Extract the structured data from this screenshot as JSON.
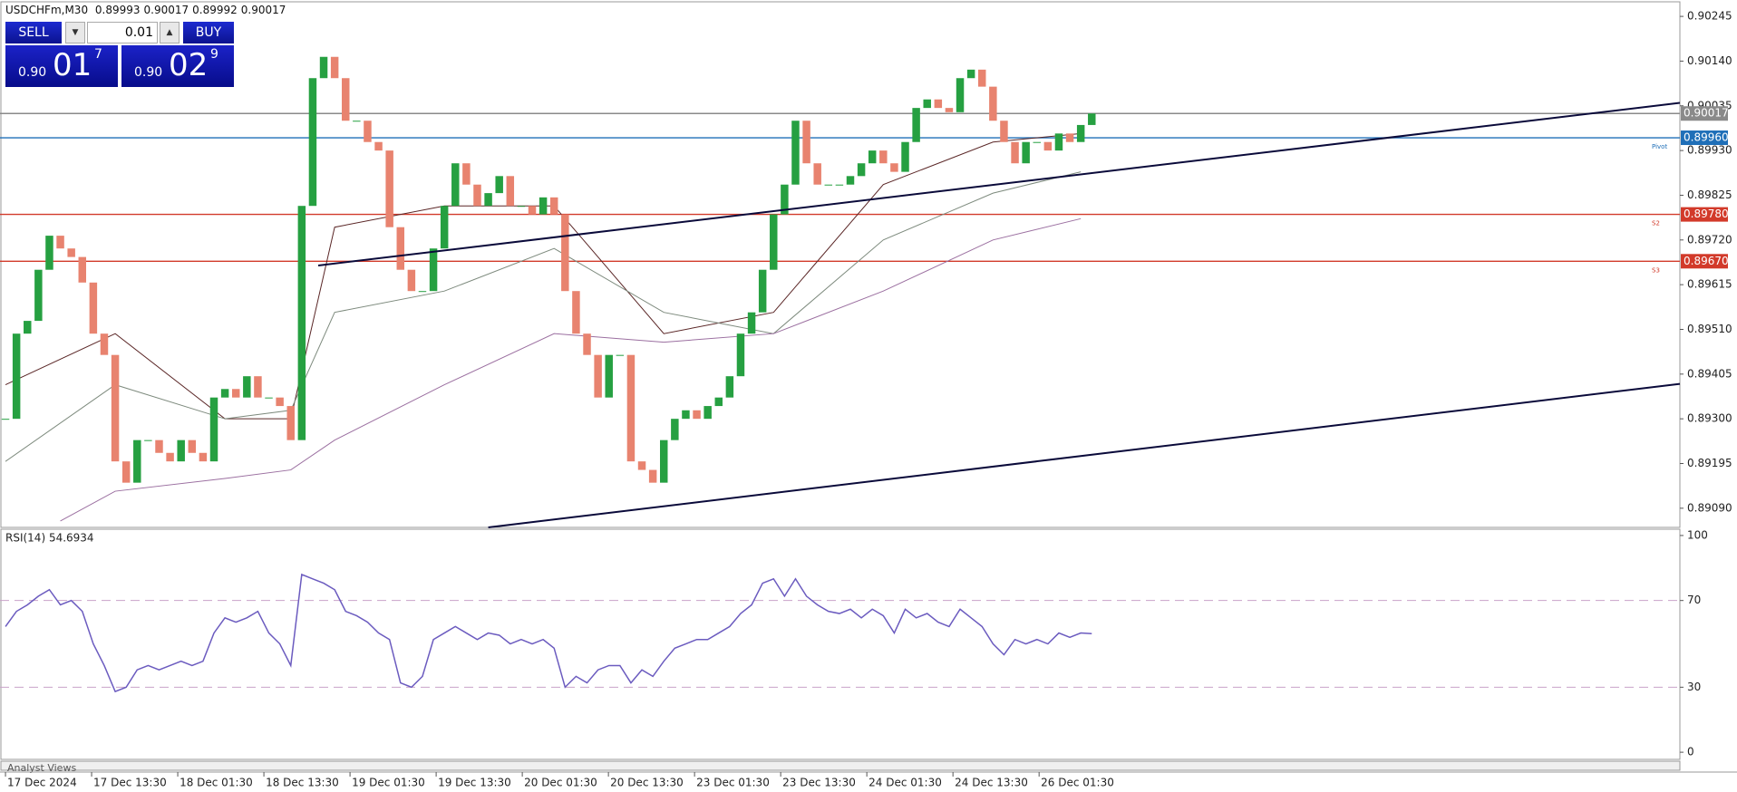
{
  "header": {
    "symbol": "USDCHFm,M30",
    "ohlc": [
      0.89993,
      0.90017,
      0.89992,
      0.90017
    ]
  },
  "trade_panel": {
    "sell": "SELL",
    "buy": "BUY",
    "lot": "0.01",
    "sell_price": {
      "small": "0.90",
      "big": "01",
      "sup": "7"
    },
    "buy_price": {
      "small": "0.90",
      "big": "02",
      "sup": "9"
    }
  },
  "footer": "Analyst Views",
  "chart_data": [
    {
      "type": "candlestick",
      "up_color": "#26a041",
      "down_color": "#e8836f",
      "values": [
        0.893,
        0.895,
        0.8953,
        0.8965,
        0.8973,
        0.897,
        0.8968,
        0.8962,
        0.895,
        0.8945,
        0.892,
        0.8915,
        0.8925,
        0.8925,
        0.8922,
        0.892,
        0.8925,
        0.8922,
        0.892,
        0.8935,
        0.8937,
        0.8935,
        0.894,
        0.8935,
        0.8935,
        0.8933,
        0.8925,
        0.898,
        0.901,
        0.9015,
        0.901,
        0.9,
        0.9,
        0.8995,
        0.8993,
        0.8975,
        0.8965,
        0.896,
        0.896,
        0.897,
        0.898,
        0.899,
        0.8985,
        0.898,
        0.8983,
        0.8987,
        0.898,
        0.898,
        0.8978,
        0.8982,
        0.8978,
        0.896,
        0.895,
        0.8945,
        0.8935,
        0.8945,
        0.8945,
        0.892,
        0.8918,
        0.8915,
        0.8925,
        0.893,
        0.8932,
        0.893,
        0.8933,
        0.8935,
        0.894,
        0.895,
        0.8955,
        0.8965,
        0.8978,
        0.8985,
        0.9,
        0.899,
        0.8985,
        0.8985,
        0.8985,
        0.8987,
        0.899,
        0.8993,
        0.899,
        0.8988,
        0.8995,
        0.9003,
        0.9005,
        0.9003,
        0.9002,
        0.901,
        0.9012,
        0.9008,
        0.9,
        0.8995,
        0.899,
        0.8995,
        0.8995,
        0.8993,
        0.8997,
        0.8995,
        0.8999,
        0.90017
      ],
      "moving_averages": [
        {
          "color": "#5a2626",
          "x": [
            0,
            10,
            20,
            26,
            30,
            40,
            50,
            60,
            70,
            80,
            90,
            98
          ],
          "values": [
            0.8938,
            0.895,
            0.893,
            0.893,
            0.8975,
            0.898,
            0.898,
            0.895,
            0.8955,
            0.8985,
            0.8995,
            0.8997
          ]
        },
        {
          "color": "#7d8a7d",
          "x": [
            0,
            10,
            20,
            26,
            30,
            40,
            50,
            60,
            70,
            80,
            90,
            98
          ],
          "values": [
            0.892,
            0.8938,
            0.893,
            0.8932,
            0.8955,
            0.896,
            0.897,
            0.8955,
            0.895,
            0.8972,
            0.8983,
            0.8988
          ]
        },
        {
          "color": "#9b6fa0",
          "x": [
            5,
            10,
            20,
            26,
            30,
            40,
            50,
            60,
            70,
            80,
            90,
            98
          ],
          "values": [
            0.8906,
            0.8913,
            0.8916,
            0.8918,
            0.8925,
            0.8938,
            0.895,
            0.8948,
            0.895,
            0.896,
            0.8972,
            0.8977
          ]
        }
      ],
      "trendlines": [
        {
          "color": "#0a0a3a",
          "x": [
            28.5,
            152.6
          ],
          "y": [
            0.8966,
            0.90042
          ]
        },
        {
          "color": "#0a0a3a",
          "x": [
            44,
            152.6
          ],
          "y": [
            0.89045,
            0.89382
          ]
        }
      ],
      "levels": [
        {
          "value": 0.90017,
          "color": "#8a8a8a"
        },
        {
          "value": 0.8996,
          "label": "0.89960",
          "name": "Pivot",
          "color": "#1f6fb8"
        },
        {
          "value": 0.8978,
          "label": "0.89780",
          "name": "S2",
          "color": "#d23a2a"
        },
        {
          "value": 0.8967,
          "label": "0.89670",
          "name": "S3",
          "color": "#d23a2a"
        }
      ],
      "xlim": [
        -0.5,
        152.6
      ],
      "ylim": [
        0.89045,
        0.90275
      ],
      "yticks": [
        0.90245,
        {
          "value": 0.9014,
          "label": "0.90140"
        },
        0.90035,
        {
          "value": 0.8993,
          "label": "0.89930"
        },
        0.89825,
        {
          "value": 0.8972,
          "label": "0.89720"
        },
        0.89615,
        {
          "value": 0.8951,
          "label": "0.89510"
        },
        0.89405,
        {
          "value": 0.893,
          "label": "0.89300"
        },
        0.89195,
        {
          "value": 0.8909,
          "label": "0.89090"
        }
      ],
      "xticks": [
        {
          "value": 0,
          "label": "17 Dec 2024"
        },
        {
          "value": 7.85,
          "label": "17 Dec 13:30"
        },
        {
          "value": 15.7,
          "label": "18 Dec 01:30"
        },
        {
          "value": 23.55,
          "label": "18 Dec 13:30"
        },
        {
          "value": 31.4,
          "label": "19 Dec 01:30"
        },
        {
          "value": 39.25,
          "label": "19 Dec 13:30"
        },
        {
          "value": 47.1,
          "label": "20 Dec 01:30"
        },
        {
          "value": 54.95,
          "label": "20 Dec 13:30"
        },
        {
          "value": 62.8,
          "label": "23 Dec 01:30"
        },
        {
          "value": 70.65,
          "label": "23 Dec 13:30"
        },
        {
          "value": 78.5,
          "label": "24 Dec 01:30"
        },
        {
          "value": 86.35,
          "label": "24 Dec 13:30"
        },
        {
          "value": 94.2,
          "label": "26 Dec 01:30"
        }
      ]
    },
    {
      "type": "line",
      "title": "RSI(14) 54.6934",
      "color": "#6b5bbf",
      "values": [
        58,
        65,
        68,
        72,
        75,
        68,
        70,
        65,
        50,
        40,
        28,
        30,
        38,
        40,
        38,
        40,
        42,
        40,
        42,
        55,
        62,
        60,
        62,
        65,
        55,
        50,
        40,
        82,
        80,
        78,
        75,
        65,
        63,
        60,
        55,
        52,
        32,
        30,
        35,
        52,
        55,
        58,
        55,
        52,
        55,
        54,
        50,
        52,
        50,
        52,
        48,
        30,
        35,
        32,
        38,
        40,
        40,
        32,
        38,
        35,
        42,
        48,
        50,
        52,
        52,
        55,
        58,
        64,
        68,
        78,
        80,
        72,
        80,
        72,
        68,
        65,
        64,
        66,
        62,
        66,
        63,
        55,
        66,
        62,
        64,
        60,
        58,
        66,
        62,
        58,
        50,
        45,
        52,
        50,
        52,
        50,
        55,
        53,
        55,
        54.6934
      ],
      "levels": [
        70,
        30
      ],
      "level_color": "#c9a3c9",
      "xlim": [
        -0.5,
        152.6
      ],
      "ylim": [
        -3.3,
        102.9
      ],
      "yticks": [
        100,
        70,
        30,
        0
      ]
    }
  ]
}
